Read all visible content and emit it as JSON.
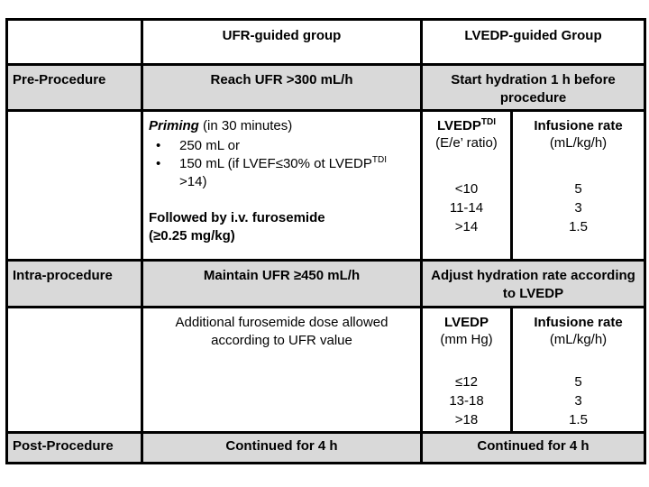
{
  "colors": {
    "row_shade": "#d9d9d9",
    "border": "#000000",
    "page_background": "#ffffff"
  },
  "table": {
    "header": {
      "ufr": "UFR-guided group",
      "lvedp": "LVEDP-guided Group"
    },
    "rows": {
      "pre": {
        "label": "Pre-Procedure",
        "ufr": "Reach UFR >300 mL/h",
        "lvedp": "Start hydration 1 h before procedure"
      },
      "pre_detail": {
        "priming_title": "Priming",
        "priming_note": " (in 30 minutes)",
        "bullet_char": "•",
        "bullet1": "250 mL or",
        "bullet2_text": "150 mL (if LVEF≤30% ot LVEDP",
        "bullet2_sup": "TDI",
        "bullet2_cont": ">14)",
        "followed_line1": "Followed by i.v. furosemide",
        "followed_line2": "(≥0.25 mg/kg)",
        "lvedp_col": {
          "title": "LVEDP",
          "title_sup": "TDI",
          "subtitle": "(E/e’ ratio)",
          "values": [
            "<10",
            "11-14",
            ">14"
          ]
        },
        "rate_col": {
          "title": "Infusione rate",
          "subtitle": "(mL/kg/h)",
          "values": [
            "5",
            "3",
            "1.5"
          ]
        }
      },
      "intra": {
        "label": "Intra-procedure",
        "ufr": "Maintain UFR ≥450 mL/h",
        "lvedp": "Adjust hydration rate according to LVEDP"
      },
      "intra_detail": {
        "ufr_text": "Additional furosemide dose allowed according to UFR value",
        "lvedp_col": {
          "title": "LVEDP",
          "subtitle": "(mm Hg)",
          "values": [
            "≤12",
            "13-18",
            ">18"
          ]
        },
        "rate_col": {
          "title": "Infusione rate",
          "subtitle": "(mL/kg/h)",
          "values": [
            "5",
            "3",
            "1.5"
          ]
        }
      },
      "post": {
        "label": "Post-Procedure",
        "ufr": "Continued for 4 h",
        "lvedp": "Continued for 4 h"
      }
    }
  }
}
